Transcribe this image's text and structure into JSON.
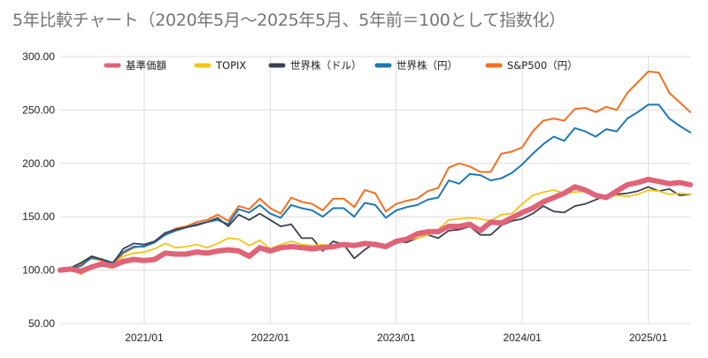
{
  "chart_data": {
    "type": "line",
    "title": "5年比較チャート（2020年5月〜2025年5月、5年前＝100として指数化）",
    "xlabel": "",
    "ylabel": "",
    "ylim": [
      50,
      300
    ],
    "yticks": [
      "50.00",
      "100.00",
      "150.00",
      "200.00",
      "250.00",
      "300.00"
    ],
    "xtick_labels": [
      "2021/01",
      "2022/01",
      "2023/01",
      "2024/01",
      "2025/01"
    ],
    "x": [
      "2020/05",
      "2020/06",
      "2020/07",
      "2020/08",
      "2020/09",
      "2020/10",
      "2020/11",
      "2020/12",
      "2021/01",
      "2021/02",
      "2021/03",
      "2021/04",
      "2021/05",
      "2021/06",
      "2021/07",
      "2021/08",
      "2021/09",
      "2021/10",
      "2021/11",
      "2021/12",
      "2022/01",
      "2022/02",
      "2022/03",
      "2022/04",
      "2022/05",
      "2022/06",
      "2022/07",
      "2022/08",
      "2022/09",
      "2022/10",
      "2022/11",
      "2022/12",
      "2023/01",
      "2023/02",
      "2023/03",
      "2023/04",
      "2023/05",
      "2023/06",
      "2023/07",
      "2023/08",
      "2023/09",
      "2023/10",
      "2023/11",
      "2023/12",
      "2024/01",
      "2024/02",
      "2024/03",
      "2024/04",
      "2024/05",
      "2024/06",
      "2024/07",
      "2024/08",
      "2024/09",
      "2024/10",
      "2024/11",
      "2024/12",
      "2025/01",
      "2025/02",
      "2025/03",
      "2025/04",
      "2025/05"
    ],
    "grid": true,
    "legend_position": "top",
    "series": [
      {
        "name": "基準価額",
        "color": "#e06377",
        "width": 6,
        "values": [
          100,
          101,
          99,
          103,
          106,
          104,
          108,
          110,
          109,
          110,
          116,
          115,
          115,
          117,
          116,
          118,
          119,
          118,
          113,
          121,
          118,
          121,
          122,
          121,
          120,
          121,
          122,
          124,
          123,
          125,
          124,
          122,
          127,
          129,
          134,
          136,
          136,
          141,
          141,
          143,
          137,
          145,
          144,
          149,
          154,
          158,
          164,
          168,
          172,
          178,
          175,
          170,
          168,
          174,
          180,
          182,
          185,
          183,
          181,
          182,
          180
        ]
      },
      {
        "name": "TOPIX",
        "color": "#f5c518",
        "width": 1.8,
        "values": [
          99,
          101,
          96,
          104,
          104,
          102,
          113,
          116,
          117,
          120,
          125,
          121,
          122,
          124,
          121,
          125,
          130,
          129,
          123,
          128,
          120,
          124,
          127,
          124,
          123,
          124,
          122,
          125,
          122,
          125,
          126,
          123,
          126,
          128,
          130,
          133,
          138,
          147,
          148,
          149,
          148,
          146,
          152,
          153,
          162,
          170,
          173,
          175,
          172,
          173,
          174,
          170,
          168,
          170,
          169,
          171,
          175,
          174,
          171,
          172,
          171
        ]
      },
      {
        "name": "世界株（ドル）",
        "color": "#3d4050",
        "width": 1.8,
        "values": [
          100,
          102,
          107,
          113,
          110,
          106,
          120,
          125,
          124,
          127,
          135,
          138,
          140,
          142,
          145,
          149,
          141,
          152,
          147,
          153,
          147,
          141,
          143,
          130,
          130,
          118,
          127,
          124,
          111,
          119,
          126,
          122,
          127,
          126,
          130,
          133,
          130,
          137,
          138,
          141,
          133,
          133,
          142,
          146,
          148,
          153,
          160,
          155,
          154,
          160,
          162,
          166,
          170,
          171,
          172,
          174,
          178,
          174,
          176,
          170,
          171
        ]
      },
      {
        "name": "世界株（円）",
        "color": "#1f78b4",
        "width": 2,
        "values": [
          100,
          101,
          104,
          112,
          110,
          107,
          117,
          122,
          122,
          126,
          133,
          137,
          140,
          143,
          145,
          147,
          143,
          157,
          154,
          161,
          153,
          149,
          161,
          158,
          156,
          150,
          158,
          158,
          150,
          163,
          161,
          149,
          156,
          159,
          161,
          166,
          168,
          184,
          181,
          190,
          189,
          184,
          186,
          191,
          199,
          209,
          218,
          225,
          221,
          233,
          230,
          225,
          232,
          230,
          242,
          248,
          255,
          255,
          242,
          235,
          229
        ]
      },
      {
        "name": "S&P500（円）",
        "color": "#f37021",
        "width": 2,
        "values": [
          100,
          102,
          106,
          111,
          109,
          105,
          116,
          121,
          123,
          127,
          134,
          139,
          141,
          145,
          147,
          152,
          146,
          160,
          157,
          167,
          158,
          153,
          168,
          164,
          162,
          156,
          167,
          167,
          159,
          175,
          172,
          155,
          162,
          165,
          167,
          174,
          177,
          196,
          200,
          197,
          192,
          192,
          209,
          211,
          215,
          230,
          240,
          242,
          240,
          251,
          252,
          248,
          253,
          250,
          266,
          276,
          286,
          285,
          266,
          257,
          248
        ]
      }
    ]
  }
}
